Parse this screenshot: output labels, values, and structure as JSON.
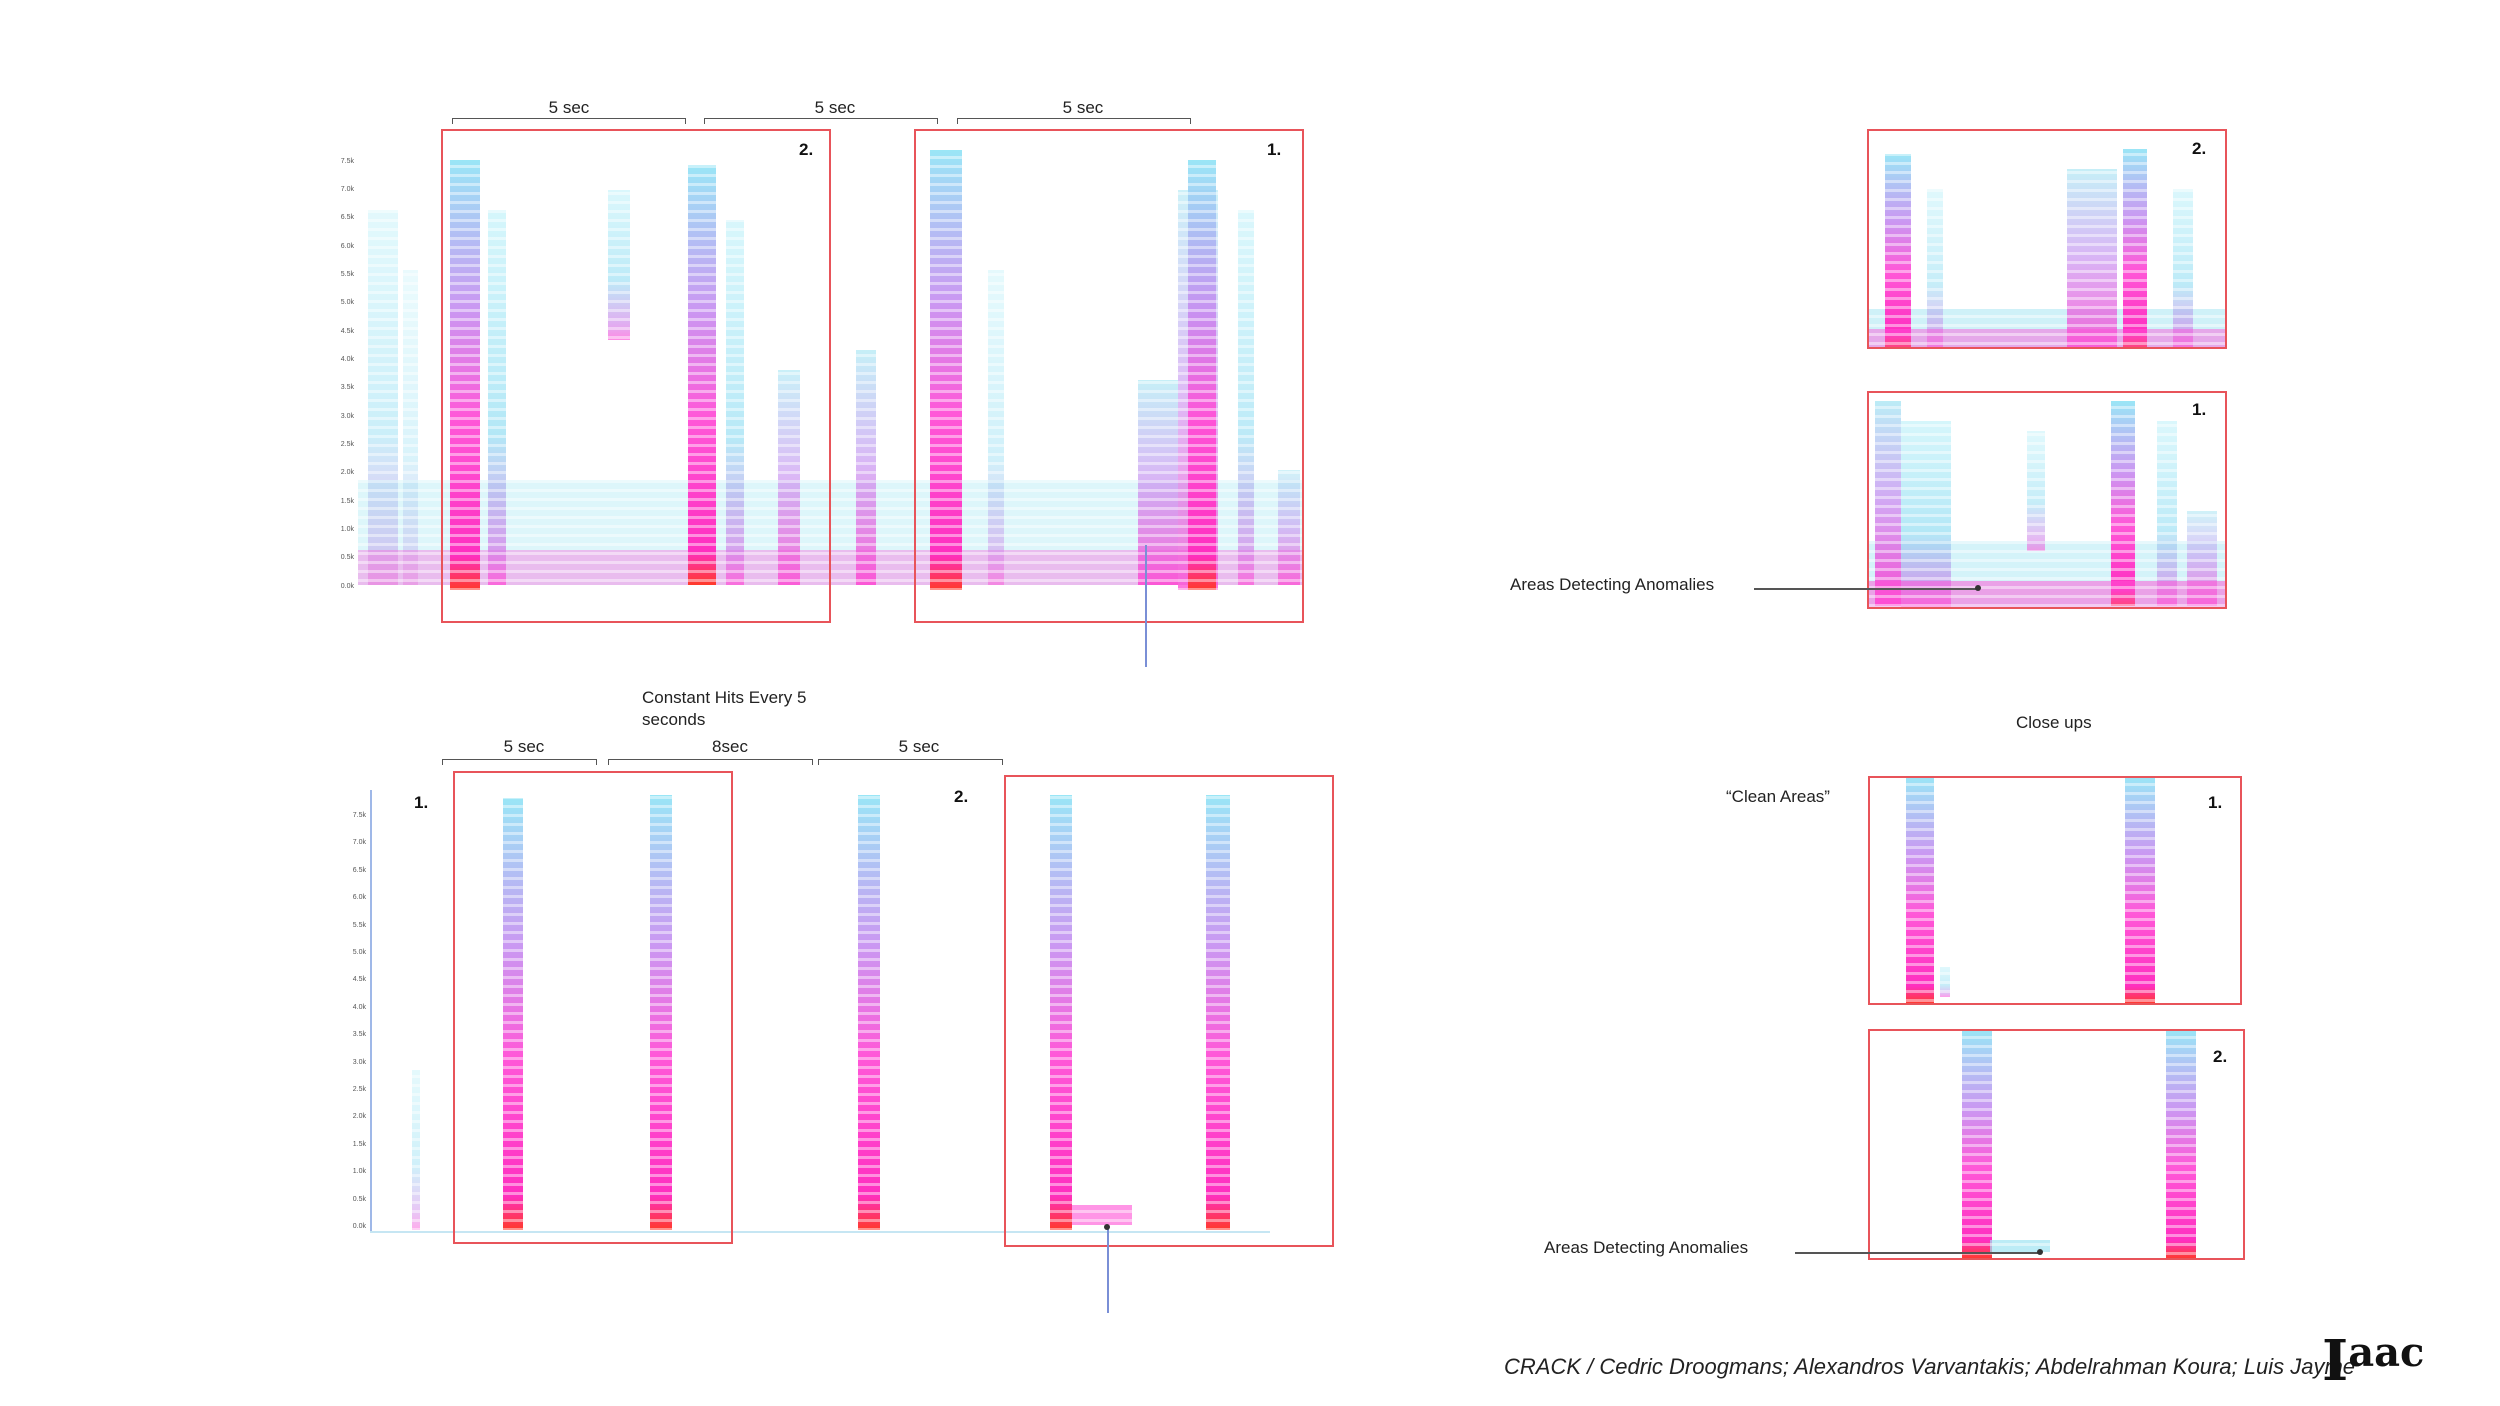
{
  "top_left": {
    "brackets": [
      "5 sec",
      "5 sec",
      "5 sec"
    ],
    "box_labels": [
      "2.",
      "1."
    ],
    "y_ticks": [
      "7.5k",
      "7.0k",
      "6.5k",
      "6.0k",
      "5.5k",
      "5.0k",
      "4.5k",
      "4.0k",
      "3.5k",
      "3.0k",
      "2.5k",
      "2.0k",
      "1.5k",
      "1.0k",
      "0.5k",
      "0.0k"
    ]
  },
  "bottom_left": {
    "caption": "Constant Hits Every 5 seconds",
    "brackets": [
      "5 sec",
      "8sec",
      "5 sec"
    ],
    "labels": [
      "1.",
      "2."
    ],
    "y_ticks": [
      "7.5k",
      "7.0k",
      "6.5k",
      "6.0k",
      "5.5k",
      "5.0k",
      "4.5k",
      "4.0k",
      "3.5k",
      "3.0k",
      "2.5k",
      "2.0k",
      "1.5k",
      "1.0k",
      "0.5k",
      "0.0k"
    ]
  },
  "right": {
    "top_labels": [
      "2.",
      "1."
    ],
    "anomalies_label_1": "Areas Detecting Anomalies",
    "close_ups": "Close ups",
    "clean_areas": "“Clean Areas”",
    "bottom_labels": [
      "1.",
      "2."
    ],
    "anomalies_label_2": "Areas Detecting Anomalies"
  },
  "footer": {
    "credit": "CRACK / Cedric Droogmans; Alexandros Varvantakis; Abdelrahman Koura; Luis Jayme",
    "logo_main": "I",
    "logo_sup": "aac"
  },
  "colors": {
    "box_red": "#e8545a",
    "spectrogram_light": "#9fe4f2",
    "spectrogram_mid": "#ff3fd0",
    "spectrogram_hot": "#ff2a2a"
  }
}
